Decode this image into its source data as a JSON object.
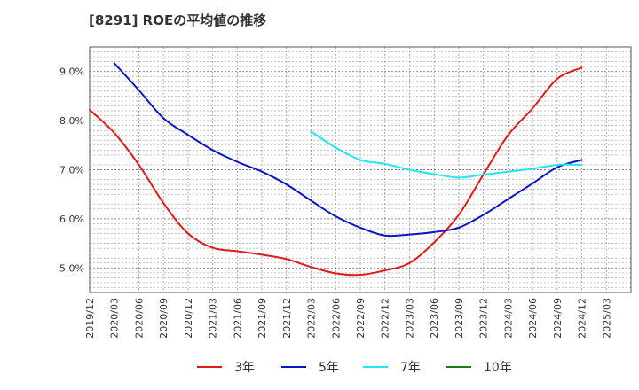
{
  "chart_data": {
    "type": "line",
    "title": "[8291]  ROEの平均値の推移",
    "xlabel": "",
    "ylabel": "",
    "ylim": [
      4.5,
      9.5
    ],
    "y_ticks": [
      5.0,
      6.0,
      7.0,
      8.0,
      9.0
    ],
    "y_tick_labels": [
      "5.0%",
      "6.0%",
      "7.0%",
      "8.0%",
      "9.0%"
    ],
    "x_tick_labels": [
      "2019/12",
      "2020/03",
      "2020/06",
      "2020/09",
      "2020/12",
      "2021/03",
      "2021/06",
      "2021/09",
      "2021/12",
      "2022/03",
      "2022/06",
      "2022/09",
      "2022/12",
      "2023/03",
      "2023/06",
      "2023/09",
      "2023/12",
      "2024/03",
      "2024/06",
      "2024/09",
      "2024/12",
      "2025/03"
    ],
    "legend_position": "bottom",
    "grid": true,
    "series": [
      {
        "name": "3年",
        "color": "#e01b1b",
        "points": [
          [
            0,
            8.22
          ],
          [
            1,
            7.75
          ],
          [
            2,
            7.1
          ],
          [
            3,
            6.32
          ],
          [
            4,
            5.7
          ],
          [
            5,
            5.41
          ],
          [
            6,
            5.34
          ],
          [
            7,
            5.27
          ],
          [
            8,
            5.18
          ],
          [
            9,
            5.02
          ],
          [
            10,
            4.89
          ],
          [
            11,
            4.86
          ],
          [
            12,
            4.95
          ],
          [
            13,
            5.1
          ],
          [
            14,
            5.52
          ],
          [
            15,
            6.08
          ],
          [
            16,
            6.9
          ],
          [
            17,
            7.7
          ],
          [
            18,
            8.25
          ],
          [
            19,
            8.85
          ],
          [
            20,
            9.08
          ]
        ]
      },
      {
        "name": "5年",
        "color": "#0a16c4",
        "points": [
          [
            1,
            9.17
          ],
          [
            2,
            8.62
          ],
          [
            3,
            8.05
          ],
          [
            4,
            7.71
          ],
          [
            5,
            7.4
          ],
          [
            6,
            7.16
          ],
          [
            7,
            6.96
          ],
          [
            8,
            6.7
          ],
          [
            9,
            6.37
          ],
          [
            10,
            6.05
          ],
          [
            11,
            5.82
          ],
          [
            12,
            5.66
          ],
          [
            13,
            5.68
          ],
          [
            14,
            5.73
          ],
          [
            15,
            5.82
          ],
          [
            16,
            6.08
          ],
          [
            17,
            6.4
          ],
          [
            18,
            6.72
          ],
          [
            19,
            7.05
          ],
          [
            20,
            7.2
          ]
        ]
      },
      {
        "name": "7年",
        "color": "#22e6f0",
        "points": [
          [
            9,
            7.78
          ],
          [
            10,
            7.45
          ],
          [
            11,
            7.2
          ],
          [
            12,
            7.12
          ],
          [
            13,
            7.0
          ],
          [
            14,
            6.91
          ],
          [
            15,
            6.84
          ],
          [
            16,
            6.9
          ],
          [
            17,
            6.96
          ],
          [
            18,
            7.02
          ],
          [
            19,
            7.1
          ],
          [
            20,
            7.1
          ]
        ]
      },
      {
        "name": "10年",
        "color": "#1a7a1a",
        "points": []
      }
    ]
  }
}
